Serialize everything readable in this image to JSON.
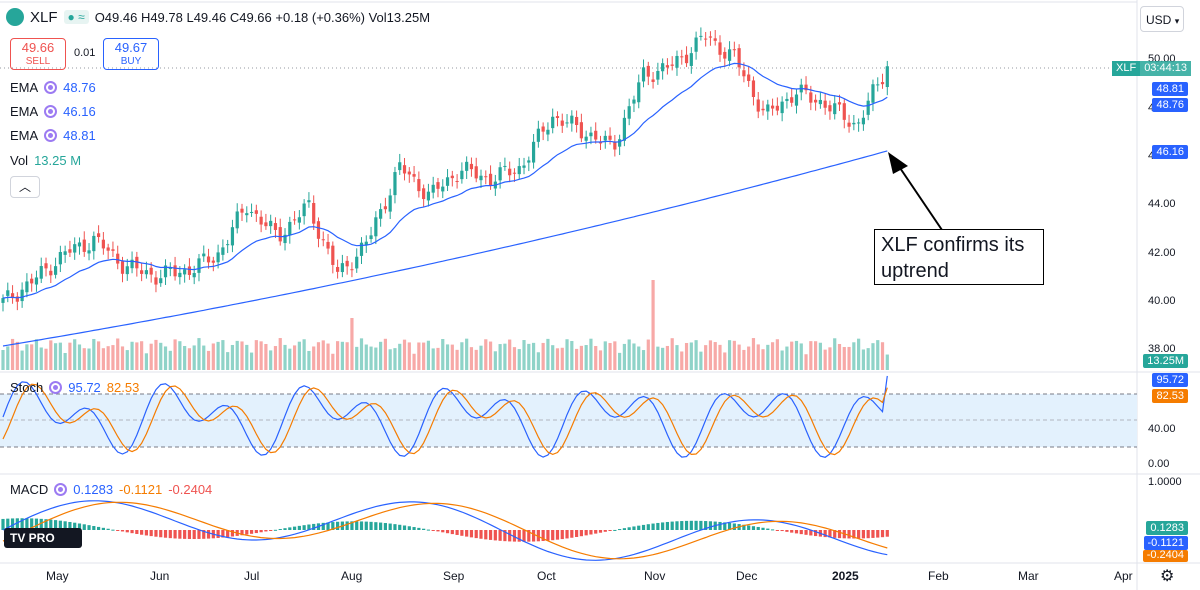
{
  "header": {
    "symbol": "XLF",
    "ohlc_text": "O49.46 H49.78 L49.46 C49.66 +0.18 (+0.36%) Vol13.25M",
    "currency": "USD"
  },
  "trade": {
    "sell_price": "49.66",
    "sell_label": "SELL",
    "spread": "0.01",
    "buy_price": "49.67",
    "buy_label": "BUY"
  },
  "indicators": {
    "ema1": {
      "name": "EMA",
      "value": "48.76",
      "color": "#2962ff"
    },
    "ema2": {
      "name": "EMA",
      "value": "46.16",
      "color": "#2962ff"
    },
    "ema3": {
      "name": "EMA",
      "value": "48.81",
      "color": "#2962ff"
    },
    "vol": {
      "name": "Vol",
      "value": "13.25 M",
      "color": "#26a69a"
    },
    "stoch": {
      "name": "Stoch",
      "k": "95.72",
      "d": "82.53"
    },
    "macd": {
      "name": "MACD",
      "macd": "0.1283",
      "signal": "-0.1121",
      "hist": "-0.2404"
    }
  },
  "price_axis": {
    "labels": [
      "50.00",
      "48.00",
      "46.00",
      "44.00",
      "42.00",
      "40.00",
      "38.00"
    ],
    "symbol_tag": "XLF",
    "countdown": "03:44:13",
    "tag_48_81": "48.81",
    "tag_48_76": "48.76",
    "tag_46_16": "46.16",
    "vol_tag": "13.25M"
  },
  "stoch_axis": {
    "labels": [
      "40.00",
      "0.00"
    ],
    "tag_k": "95.72",
    "tag_d": "82.53"
  },
  "macd_axis": {
    "labels": [
      "1.0000"
    ],
    "tag_hist": "0.1283",
    "tag_macd": "-0.1121",
    "tag_sig": "-0.2404"
  },
  "time_axis": {
    "months": [
      "May",
      "Jun",
      "Jul",
      "Aug",
      "Sep",
      "Oct",
      "Nov",
      "Dec",
      "2025",
      "Feb",
      "Mar",
      "Apr"
    ]
  },
  "annotation": {
    "line1": "XLF confirms its",
    "line2": "uptrend"
  },
  "logo": "TV PRO",
  "colors": {
    "up": "#26a69a",
    "down": "#ef5350",
    "ema": "#2962ff",
    "stoch_d": "#f57c00",
    "macd_signal": "#f57c00"
  },
  "chart_data": {
    "type": "candlestick",
    "title": "XLF",
    "x_range": [
      "2024-04-22",
      "2025-01-14"
    ],
    "ylim": [
      38,
      51
    ],
    "close_series": [
      {
        "date": "2024-04-22",
        "close": 39.9
      },
      {
        "date": "2024-05-01",
        "close": 40.8
      },
      {
        "date": "2024-05-15",
        "close": 41.9
      },
      {
        "date": "2024-05-21",
        "close": 42.5
      },
      {
        "date": "2024-06-03",
        "close": 41.4
      },
      {
        "date": "2024-06-12",
        "close": 41.0
      },
      {
        "date": "2024-06-24",
        "close": 41.2
      },
      {
        "date": "2024-07-05",
        "close": 41.8
      },
      {
        "date": "2024-07-17",
        "close": 43.9
      },
      {
        "date": "2024-07-26",
        "close": 42.6
      },
      {
        "date": "2024-07-31",
        "close": 43.9
      },
      {
        "date": "2024-08-07",
        "close": 41.0
      },
      {
        "date": "2024-08-15",
        "close": 42.5
      },
      {
        "date": "2024-08-29",
        "close": 45.5
      },
      {
        "date": "2024-09-06",
        "close": 44.3
      },
      {
        "date": "2024-09-13",
        "close": 45.4
      },
      {
        "date": "2024-09-24",
        "close": 45.0
      },
      {
        "date": "2024-10-01",
        "close": 45.5
      },
      {
        "date": "2024-10-15",
        "close": 47.6
      },
      {
        "date": "2024-10-23",
        "close": 47.0
      },
      {
        "date": "2024-11-01",
        "close": 46.3
      },
      {
        "date": "2024-11-06",
        "close": 49.3
      },
      {
        "date": "2024-11-20",
        "close": 49.7
      },
      {
        "date": "2024-11-26",
        "close": 50.9
      },
      {
        "date": "2024-12-05",
        "close": 50.0
      },
      {
        "date": "2024-12-18",
        "close": 47.6
      },
      {
        "date": "2024-12-26",
        "close": 48.6
      },
      {
        "date": "2025-01-06",
        "close": 48.1
      },
      {
        "date": "2025-01-10",
        "close": 47.2
      },
      {
        "date": "2025-01-14",
        "close": 49.66
      }
    ],
    "ema_short": [
      40.0,
      41.5,
      42.2,
      41.3,
      41.2,
      43.3,
      43.2,
      41.8,
      44.6,
      44.8,
      45.1,
      46.9,
      46.5,
      48.9,
      50.4,
      49.6,
      48.6,
      48.81
    ],
    "ema_long_range": [
      38.1,
      46.16
    ],
    "volume_latest": "13.25M",
    "stochastic": {
      "k": 95.72,
      "d": 82.53,
      "levels": [
        80,
        20
      ]
    },
    "macd": {
      "macd": 0.1283,
      "signal": -0.1121,
      "histogram": -0.2404
    }
  }
}
